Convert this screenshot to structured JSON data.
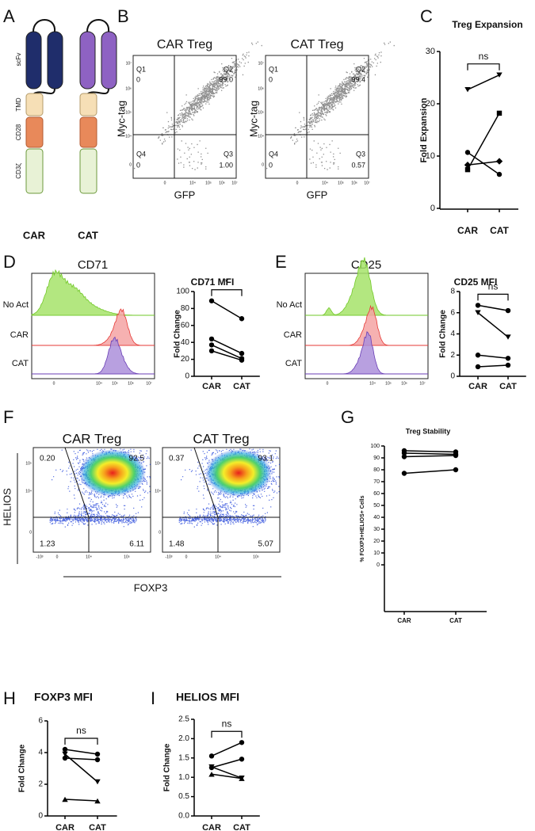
{
  "panels": [
    "A",
    "B",
    "C",
    "D",
    "E",
    "F",
    "G",
    "H",
    "I"
  ],
  "diagram": {
    "domains": [
      "scFv",
      "TMD",
      "CD28",
      "CD3ζ"
    ],
    "constructs": [
      "CAR",
      "CAT"
    ]
  },
  "flow_b": {
    "x_label": "GFP",
    "y_label": "Myc-tag",
    "axis_ticks": [
      "0",
      "10⁴",
      "10⁵",
      "10⁶",
      "10⁷"
    ],
    "plots": [
      {
        "title": "CAR Treg",
        "quadrants": [
          {
            "name": "Q1",
            "value": "0"
          },
          {
            "name": "Q2",
            "value": "99.0"
          },
          {
            "name": "Q3",
            "value": "1.00"
          },
          {
            "name": "Q4",
            "value": "0"
          }
        ]
      },
      {
        "title": "CAT Treg",
        "quadrants": [
          {
            "name": "Q1",
            "value": "0"
          },
          {
            "name": "Q2",
            "value": "99.4"
          },
          {
            "name": "Q3",
            "value": "0.57"
          },
          {
            "name": "Q4",
            "value": "0"
          }
        ]
      }
    ]
  },
  "histograms": [
    {
      "title": "CD71",
      "rows": [
        "No Act",
        "CAR",
        "CAT"
      ],
      "x_ticks": [
        "0",
        "10⁴",
        "10⁵",
        "10⁶",
        "10⁷"
      ]
    },
    {
      "title": "CD25",
      "rows": [
        "No Act",
        "CAR",
        "CAT"
      ],
      "x_ticks": [
        "0",
        "10⁴",
        "10⁵",
        "10⁶",
        "10⁷"
      ]
    }
  ],
  "flow_f": {
    "x_label": "FOXP3",
    "y_label": "HELIOS",
    "y_ticks": [
      "0",
      "10⁴",
      "10⁵"
    ],
    "x_ticks": [
      "-10³",
      "0",
      "10⁴",
      "10⁵"
    ],
    "plots": [
      {
        "title": "CAR Treg",
        "quadrants": [
          "0.20",
          "92.5",
          "1.23",
          "6.11"
        ]
      },
      {
        "title": "CAT Treg",
        "quadrants": [
          "0.37",
          "93.1",
          "1.48",
          "5.07"
        ]
      }
    ]
  },
  "chart_data": [
    {
      "type": "line",
      "title": "Treg Expansion",
      "ylabel": "Fold Expansion",
      "categories": [
        "CAR",
        "CAT"
      ],
      "ylim": [
        0,
        30
      ],
      "yticks": [
        0,
        10,
        20,
        30
      ],
      "annotation": "ns",
      "series": [
        {
          "marker": "triangle-down",
          "color": "#000000",
          "values": [
            22.7,
            25.5
          ]
        },
        {
          "marker": "circle",
          "color": "#000000",
          "values": [
            10.7,
            6.5
          ]
        },
        {
          "marker": "diamond",
          "color": "#000000",
          "values": [
            8.3,
            9
          ]
        },
        {
          "marker": "square",
          "color": "#000000",
          "values": [
            7.4,
            18.2
          ]
        }
      ]
    },
    {
      "type": "line",
      "title": "CD71 MFI",
      "ylabel": "Fold Change",
      "categories": [
        "CAR",
        "CAT"
      ],
      "ylim": [
        0,
        100
      ],
      "yticks": [
        0,
        20,
        40,
        60,
        80,
        100
      ],
      "annotation": "*",
      "series": [
        {
          "marker": "circle",
          "color": "#000000",
          "values": [
            89,
            68
          ]
        },
        {
          "marker": "circle",
          "color": "#000000",
          "values": [
            44,
            27
          ]
        },
        {
          "marker": "circle",
          "color": "#000000",
          "values": [
            37,
            21
          ]
        },
        {
          "marker": "circle",
          "color": "#000000",
          "values": [
            30,
            19
          ]
        }
      ]
    },
    {
      "type": "line",
      "title": "CD25 MFI",
      "ylabel": "Fold Change",
      "categories": [
        "CAR",
        "CAT"
      ],
      "ylim": [
        0,
        8
      ],
      "yticks": [
        0,
        2,
        4,
        6,
        8
      ],
      "annotation": "ns",
      "series": [
        {
          "marker": "circle",
          "color": "#000000",
          "values": [
            6.7,
            6.2
          ]
        },
        {
          "marker": "triangle-down",
          "color": "#000000",
          "values": [
            6.0,
            3.7
          ]
        },
        {
          "marker": "circle",
          "color": "#000000",
          "values": [
            2.0,
            1.7
          ]
        },
        {
          "marker": "circle",
          "color": "#000000",
          "values": [
            0.9,
            1.05
          ]
        }
      ]
    },
    {
      "type": "line",
      "title": "Treg Stability",
      "ylabel": "% FOXP3+HELIOS+ Cells",
      "categories": [
        "CAR",
        "CAT"
      ],
      "ylim": [
        0,
        100
      ],
      "yticks": [
        0,
        10,
        20,
        30,
        40,
        50,
        60,
        70,
        80,
        90,
        100
      ],
      "series": [
        {
          "marker": "circle",
          "color": "#000000",
          "values": [
            96,
            95
          ]
        },
        {
          "marker": "circle",
          "color": "#000000",
          "values": [
            94,
            93
          ]
        },
        {
          "marker": "circle",
          "color": "#000000",
          "values": [
            91,
            92
          ]
        },
        {
          "marker": "circle",
          "color": "#000000",
          "values": [
            77,
            80
          ]
        }
      ]
    },
    {
      "type": "line",
      "title": "FOXP3 MFI",
      "ylabel": "Fold Change",
      "categories": [
        "CAR",
        "CAT"
      ],
      "ylim": [
        0,
        6
      ],
      "yticks": [
        0,
        2,
        4,
        6
      ],
      "annotation": "ns",
      "series": [
        {
          "marker": "circle",
          "color": "#000000",
          "values": [
            4.2,
            3.9
          ]
        },
        {
          "marker": "circle",
          "color": "#000000",
          "values": [
            3.65,
            3.55
          ]
        },
        {
          "marker": "triangle-down",
          "color": "#000000",
          "values": [
            3.9,
            2.15
          ]
        },
        {
          "marker": "triangle-up",
          "color": "#000000",
          "values": [
            1.05,
            0.95
          ]
        }
      ]
    },
    {
      "type": "line",
      "title": "HELIOS MFI",
      "ylabel": "Fold Change",
      "categories": [
        "CAR",
        "CAT"
      ],
      "ylim": [
        0,
        2.5
      ],
      "yticks": [
        {
          "value": 0,
          "label": "0.0"
        },
        0.5,
        {
          "value": 1,
          "label": "1.0"
        },
        1.5,
        {
          "value": 2,
          "label": "2.0"
        },
        2.5
      ],
      "annotation": "ns",
      "series": [
        {
          "marker": "circle",
          "color": "#000000",
          "values": [
            1.55,
            1.9
          ]
        },
        {
          "marker": "circle",
          "color": "#000000",
          "values": [
            1.25,
            1.47
          ]
        },
        {
          "marker": "triangle-down",
          "color": "#000000",
          "values": [
            1.27,
            0.98
          ]
        },
        {
          "marker": "triangle-up",
          "color": "#000000",
          "values": [
            1.08,
            0.97
          ]
        }
      ]
    }
  ]
}
